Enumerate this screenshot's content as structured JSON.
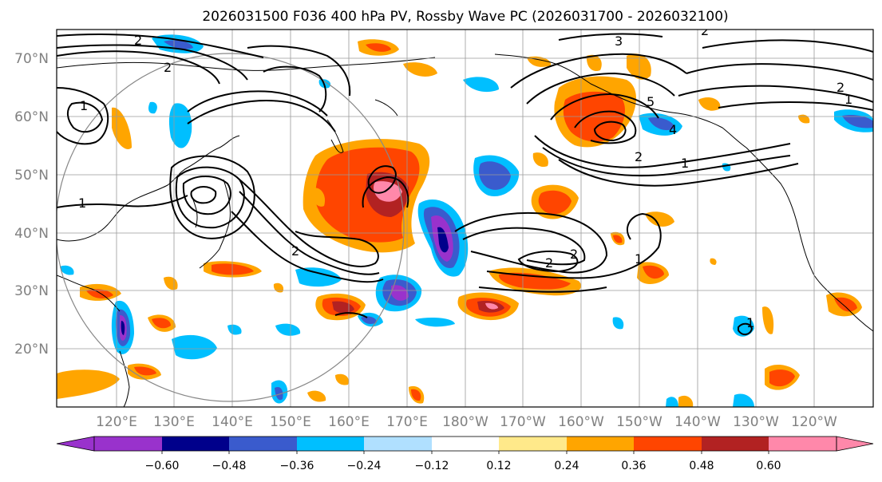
{
  "title": "2026031500 F036 400 hPa PV, Rossby Wave PC (2026031700 - 2026032100)",
  "map": {
    "projection": "equirectangular",
    "lat_range": [
      10,
      75
    ],
    "lon_range": [
      110,
      242
    ],
    "lat_labels": [
      "20°N",
      "30°N",
      "40°N",
      "50°N",
      "60°N",
      "70°N"
    ],
    "lon_labels": [
      "120°E",
      "130°E",
      "140°E",
      "150°E",
      "160°E",
      "170°E",
      "180°W",
      "170°W",
      "160°W",
      "150°W",
      "140°W",
      "130°W",
      "120°W"
    ],
    "contour_labels": [
      "1",
      "2",
      "3",
      "4",
      "5"
    ]
  },
  "colorbar": {
    "ticks": [
      "−0.60",
      "−0.48",
      "−0.36",
      "−0.24",
      "−0.12",
      "0.12",
      "0.24",
      "0.36",
      "0.48",
      "0.60"
    ],
    "colors": [
      "#9932cc",
      "#00008b",
      "#3a5bcd",
      "#00bfff",
      "#b0e0ff",
      "#ffffff",
      "#ffe98a",
      "#ffa500",
      "#ff4500",
      "#b22222",
      "#ff88aa"
    ],
    "extend": "both"
  }
}
